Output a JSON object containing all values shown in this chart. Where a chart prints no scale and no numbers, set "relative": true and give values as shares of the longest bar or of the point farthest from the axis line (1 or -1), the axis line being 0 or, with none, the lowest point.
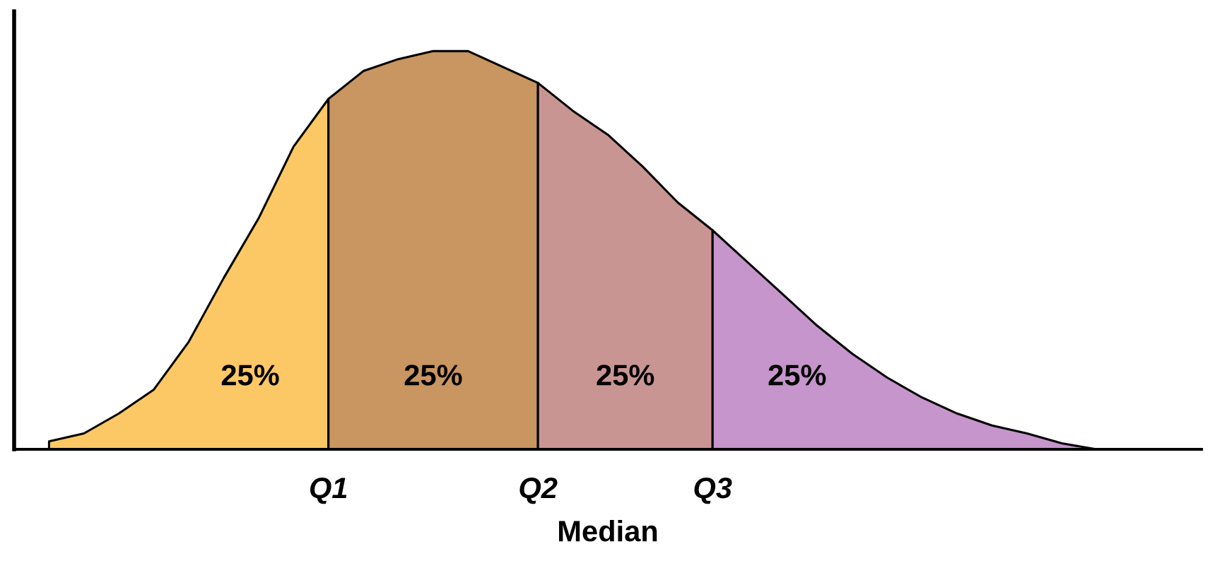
{
  "chart_data": {
    "type": "area",
    "relative": true,
    "xlabel": "Median",
    "categories": [
      null,
      null,
      null,
      null,
      null,
      null,
      null,
      null,
      null,
      "Q1",
      null,
      null,
      null,
      null,
      null,
      "Q2",
      null,
      null,
      null,
      null,
      "Q3",
      null,
      null,
      null,
      null,
      null,
      null,
      null,
      null,
      null,
      null,
      null,
      null,
      null,
      null
    ],
    "grid": false,
    "legend": false,
    "annotations": [
      "25%",
      "25%",
      "25%",
      "25%"
    ],
    "series": [
      {
        "color": "#fcc865",
        "values": [
          null,
          0.02,
          0.04,
          0.09,
          0.15,
          0.27,
          0.43,
          0.58,
          0.76,
          0.88,
          null,
          null,
          null,
          null,
          null,
          null,
          null,
          null,
          null,
          null,
          null,
          null,
          null,
          null,
          null,
          null,
          null,
          null,
          null,
          null,
          null,
          null,
          null,
          null,
          null
        ]
      },
      {
        "color": "#c99560",
        "values": [
          null,
          null,
          null,
          null,
          null,
          null,
          null,
          null,
          null,
          0.88,
          0.95,
          0.98,
          1.0,
          1.0,
          0.96,
          0.92,
          null,
          null,
          null,
          null,
          null,
          null,
          null,
          null,
          null,
          null,
          null,
          null,
          null,
          null,
          null,
          null,
          null,
          null,
          null
        ]
      },
      {
        "color": "#c99592",
        "values": [
          null,
          null,
          null,
          null,
          null,
          null,
          null,
          null,
          null,
          null,
          null,
          null,
          null,
          null,
          null,
          0.92,
          0.85,
          0.79,
          0.71,
          0.62,
          0.55,
          null,
          null,
          null,
          null,
          null,
          null,
          null,
          null,
          null,
          null,
          null,
          null,
          null,
          null
        ]
      },
      {
        "color": "#c595cb",
        "values": [
          null,
          null,
          null,
          null,
          null,
          null,
          null,
          null,
          null,
          null,
          null,
          null,
          null,
          null,
          null,
          null,
          null,
          null,
          null,
          null,
          0.55,
          0.47,
          0.39,
          0.31,
          0.24,
          0.18,
          0.13,
          0.09,
          0.06,
          0.04,
          0.015,
          0,
          null,
          null,
          null
        ]
      }
    ]
  }
}
